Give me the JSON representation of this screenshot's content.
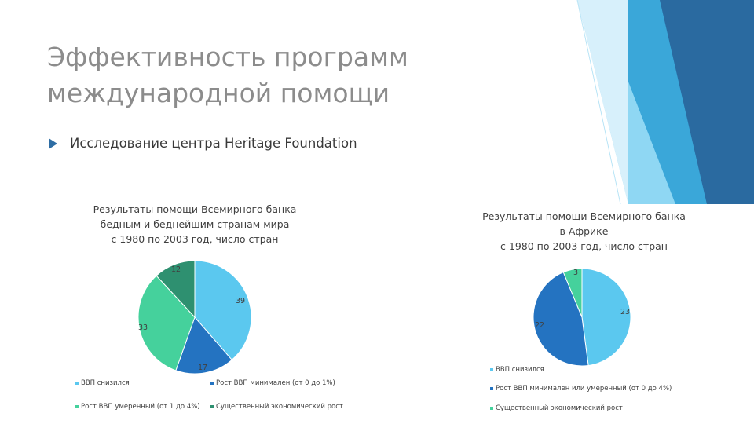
{
  "title_line1": "Эффективность программ",
  "title_line2": "международной помощи",
  "bullet": "Исследование центра Heritage Foundation",
  "colors": {
    "light_blue": "#5bc8ef",
    "dark_blue": "#2473c1",
    "dark_green": "#2e9070",
    "green": "#45d19c",
    "accent_blue": "#2e6da4"
  },
  "chart_data": [
    {
      "type": "pie",
      "title": "Результаты помощи Всемирного банка\nбедным и беднейшим странам мира\nс 1980 по 2003 год, число стран",
      "categories": [
        "ВВП снизился",
        "Рост ВВП минимален (от 0 до 1%)",
        "Рост ВВП умеренный (от 1 до 4%)",
        "Существенный экономический рост"
      ],
      "values": [
        39,
        17,
        33,
        12
      ],
      "labels": [
        "39",
        "17",
        "33",
        "12"
      ],
      "slice_colors": [
        "#5bc8ef",
        "#2473c1",
        "#45d19c",
        "#2e9070"
      ],
      "legend": [
        "ВВП снизился",
        "Рост ВВП минимален (от 0 до 1%)",
        "Рост ВВП умеренный (от 1 до 4%)",
        "Существенный экономический рост"
      ],
      "legend_placement": "bottom"
    },
    {
      "type": "pie",
      "title": "Результаты помощи Всемирного банка\nв Африке\nс 1980 по 2003 год, число стран",
      "categories": [
        "ВВП снизился",
        "Рост ВВП минимален или умеренный (от 0 до 4%)",
        "Существенный экономический рост"
      ],
      "values": [
        23,
        22,
        3
      ],
      "labels": [
        "23",
        "22",
        "3"
      ],
      "slice_colors": [
        "#5bc8ef",
        "#2473c1",
        "#45d19c"
      ],
      "legend": [
        "ВВП снизился",
        "Рост ВВП минимален или умеренный (от 0 до 4%)",
        "Существенный экономический рост"
      ],
      "legend_placement": "bottom"
    }
  ]
}
